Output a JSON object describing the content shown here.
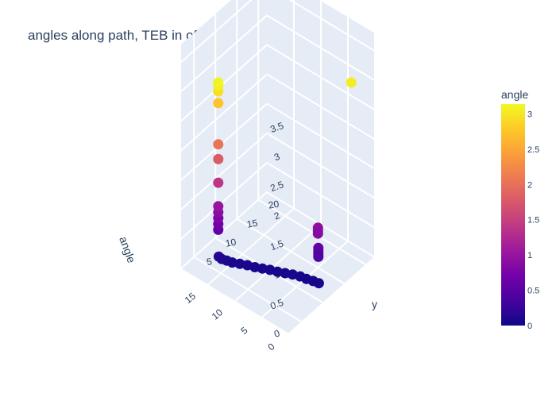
{
  "chart_data": {
    "type": "scatter3d",
    "title": "angles along path, TEB in office: Trial 1",
    "xlabel": "",
    "ylabel": "y",
    "zlabel": "angle",
    "x_ticks": [
      "0",
      "5",
      "10",
      "15"
    ],
    "y_ticks": [
      "5",
      "10",
      "15",
      "20"
    ],
    "z_ticks": [
      "0",
      "0.5",
      "1",
      "1.5",
      "2",
      "2.5",
      "3",
      "3.5"
    ],
    "xlim": [
      0,
      20
    ],
    "ylim": [
      2,
      22
    ],
    "zlim": [
      0,
      3.8
    ],
    "colorbar": {
      "title": "angle",
      "range": [
        0,
        3.14
      ],
      "ticks": [
        "0",
        "0.5",
        "1",
        "1.5",
        "2",
        "2.5",
        "3"
      ],
      "colorscale": [
        "#0d0887",
        "#46039f",
        "#7201a8",
        "#9c179e",
        "#bd3786",
        "#d8576b",
        "#ed7953",
        "#fb9f3a",
        "#fdca26",
        "#f0f921"
      ]
    },
    "points": [
      {
        "x": 2.0,
        "y": 19.0,
        "z": 3.05
      },
      {
        "x": 3.0,
        "y": 12.5,
        "z": 0.95
      },
      {
        "x": 3.0,
        "y": 12.5,
        "z": 0.9
      },
      {
        "x": 3.0,
        "y": 12.5,
        "z": 0.85
      },
      {
        "x": 3.0,
        "y": 12.6,
        "z": 0.6
      },
      {
        "x": 3.0,
        "y": 12.6,
        "z": 0.55
      },
      {
        "x": 3.0,
        "y": 12.6,
        "z": 0.5
      },
      {
        "x": 3.0,
        "y": 12.6,
        "z": 0.45
      },
      {
        "x": 2.6,
        "y": 12.2,
        "z": 0.05
      },
      {
        "x": 3.5,
        "y": 12.0,
        "z": 0.05
      },
      {
        "x": 4.5,
        "y": 11.7,
        "z": 0.05
      },
      {
        "x": 5.5,
        "y": 11.5,
        "z": 0.05
      },
      {
        "x": 6.5,
        "y": 11.0,
        "z": 0.06
      },
      {
        "x": 7.5,
        "y": 10.5,
        "z": 0.06
      },
      {
        "x": 8.5,
        "y": 10.0,
        "z": 0.06
      },
      {
        "x": 9.5,
        "y": 9.5,
        "z": 0.07
      },
      {
        "x": 10.5,
        "y": 9.0,
        "z": 0.07
      },
      {
        "x": 11.5,
        "y": 8.5,
        "z": 0.07
      },
      {
        "x": 12.5,
        "y": 8.0,
        "z": 0.08
      },
      {
        "x": 13.5,
        "y": 7.5,
        "z": 0.08
      },
      {
        "x": 14.5,
        "y": 7.0,
        "z": 0.08
      },
      {
        "x": 15.2,
        "y": 6.6,
        "z": 0.1
      },
      {
        "x": 15.8,
        "y": 6.2,
        "z": 0.12
      },
      {
        "x": 16.2,
        "y": 6.0,
        "z": 0.15
      },
      {
        "x": 16.3,
        "y": 6.0,
        "z": 0.6
      },
      {
        "x": 16.3,
        "y": 6.0,
        "z": 0.7
      },
      {
        "x": 16.3,
        "y": 6.0,
        "z": 0.8
      },
      {
        "x": 16.3,
        "y": 6.0,
        "z": 0.9
      },
      {
        "x": 16.3,
        "y": 6.0,
        "z": 1.0
      },
      {
        "x": 16.3,
        "y": 6.0,
        "z": 1.4
      },
      {
        "x": 16.3,
        "y": 6.0,
        "z": 1.8
      },
      {
        "x": 16.3,
        "y": 6.0,
        "z": 2.05
      },
      {
        "x": 16.3,
        "y": 6.0,
        "z": 2.75
      },
      {
        "x": 16.3,
        "y": 6.0,
        "z": 2.95
      },
      {
        "x": 16.3,
        "y": 6.0,
        "z": 3.05
      },
      {
        "x": 16.3,
        "y": 6.0,
        "z": 3.1
      }
    ]
  }
}
